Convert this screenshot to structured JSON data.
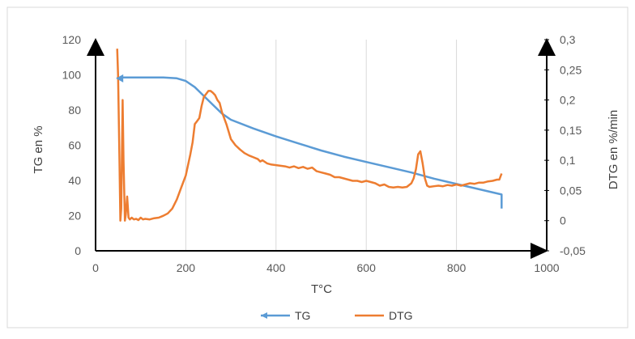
{
  "chart_data": {
    "type": "line",
    "xlabel": "T°C",
    "ylabel": "TG en %",
    "y2label": "DTG en %/min",
    "xlim": [
      0,
      1000
    ],
    "ylim": [
      0,
      120
    ],
    "y2lim": [
      -0.05,
      0.3
    ],
    "x_ticks": [
      "0",
      "200",
      "400",
      "600",
      "800",
      "1000"
    ],
    "y_ticks": [
      "0",
      "20",
      "40",
      "60",
      "80",
      "100",
      "120"
    ],
    "y2_ticks": [
      "-0,05",
      "0",
      "0,05",
      "0,1",
      "0,15",
      "0,2",
      "0,25",
      "0,3"
    ],
    "grid": true,
    "legend_position": "bottom",
    "colors": {
      "TG": "#5b9bd5",
      "DTG": "#ed7d31"
    },
    "series": [
      {
        "name": "TG",
        "axis": "left",
        "x": [
          47,
          60,
          100,
          150,
          180,
          200,
          220,
          240,
          260,
          280,
          300,
          350,
          400,
          450,
          500,
          550,
          600,
          650,
          700,
          750,
          800,
          850,
          900,
          900
        ],
        "y": [
          98,
          98.5,
          98.5,
          98.5,
          98,
          96.5,
          93,
          88,
          83,
          78,
          74.5,
          69.5,
          65,
          61,
          57,
          53.5,
          50.5,
          47.5,
          44.5,
          41,
          38,
          35,
          32,
          24
        ]
      },
      {
        "name": "DTG",
        "axis": "right",
        "x": [
          48,
          50,
          53,
          55,
          57,
          60,
          62,
          65,
          67,
          70,
          73,
          76,
          80,
          85,
          90,
          95,
          100,
          105,
          110,
          120,
          130,
          140,
          150,
          160,
          170,
          180,
          190,
          200,
          210,
          215,
          220,
          225,
          230,
          235,
          240,
          245,
          250,
          255,
          260,
          265,
          270,
          275,
          280,
          290,
          300,
          310,
          320,
          330,
          340,
          350,
          360,
          365,
          370,
          380,
          390,
          400,
          410,
          420,
          430,
          440,
          450,
          460,
          470,
          480,
          490,
          500,
          510,
          520,
          530,
          540,
          550,
          560,
          570,
          580,
          590,
          600,
          610,
          620,
          630,
          640,
          650,
          660,
          670,
          680,
          690,
          700,
          705,
          710,
          715,
          720,
          725,
          730,
          735,
          740,
          750,
          760,
          770,
          780,
          790,
          800,
          810,
          820,
          830,
          840,
          850,
          860,
          870,
          880,
          890,
          895,
          900
        ],
        "y": [
          0.285,
          0.24,
          0.1,
          0.0,
          0.02,
          0.2,
          0.1,
          0.0,
          0.01,
          0.04,
          0.005,
          0.002,
          0.005,
          0.002,
          0.003,
          0.001,
          0.005,
          0.002,
          0.003,
          0.002,
          0.004,
          0.005,
          0.008,
          0.012,
          0.02,
          0.035,
          0.055,
          0.075,
          0.11,
          0.13,
          0.16,
          0.165,
          0.17,
          0.19,
          0.205,
          0.21,
          0.215,
          0.215,
          0.212,
          0.208,
          0.2,
          0.195,
          0.18,
          0.16,
          0.135,
          0.125,
          0.118,
          0.112,
          0.108,
          0.105,
          0.102,
          0.098,
          0.1,
          0.095,
          0.093,
          0.092,
          0.091,
          0.09,
          0.088,
          0.09,
          0.087,
          0.089,
          0.086,
          0.088,
          0.082,
          0.08,
          0.078,
          0.076,
          0.072,
          0.072,
          0.07,
          0.068,
          0.066,
          0.066,
          0.064,
          0.066,
          0.064,
          0.062,
          0.058,
          0.06,
          0.056,
          0.055,
          0.056,
          0.055,
          0.056,
          0.062,
          0.07,
          0.085,
          0.11,
          0.115,
          0.095,
          0.07,
          0.058,
          0.056,
          0.057,
          0.058,
          0.057,
          0.059,
          0.058,
          0.06,
          0.058,
          0.06,
          0.062,
          0.061,
          0.063,
          0.063,
          0.065,
          0.066,
          0.068,
          0.068,
          0.078
        ]
      }
    ]
  }
}
